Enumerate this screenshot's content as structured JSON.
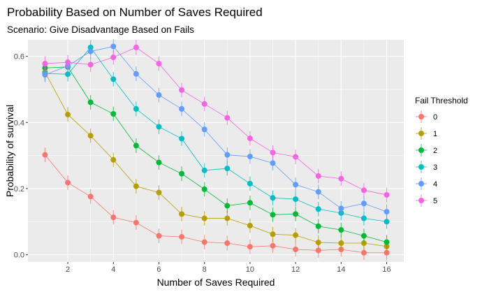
{
  "chart_data": {
    "type": "line",
    "title": "Probability Based on Number of Saves Required",
    "subtitle": "Scenario: Give Disadvantage Based on Fails",
    "xlabel": "Number of Saves Required",
    "ylabel": "Probability of survival",
    "xlim": [
      0.25,
      16.75
    ],
    "ylim": [
      -0.022,
      0.65
    ],
    "x_ticks": [
      2,
      4,
      6,
      8,
      10,
      12,
      14,
      16
    ],
    "x_tick_labels": [
      "2",
      "4",
      "6",
      "8",
      "10",
      "12",
      "14",
      "16"
    ],
    "y_ticks": [
      0.0,
      0.2,
      0.4,
      0.6
    ],
    "y_tick_labels": [
      "0.0",
      "0.2",
      "0.4",
      "0.6"
    ],
    "grid": true,
    "legend": {
      "title": "Fail Threshold",
      "position": "right"
    },
    "x": [
      1,
      2,
      3,
      4,
      5,
      6,
      7,
      8,
      9,
      10,
      11,
      12,
      13,
      14,
      15,
      16
    ],
    "error_half_width": 0.022,
    "series": [
      {
        "name": "0",
        "color": "#F8766D",
        "values": [
          0.302,
          0.218,
          0.176,
          0.113,
          0.097,
          0.057,
          0.054,
          0.038,
          0.035,
          0.024,
          0.027,
          0.016,
          0.013,
          0.016,
          0.006,
          0.006
        ]
      },
      {
        "name": "1",
        "color": "#B79F00",
        "values": [
          0.552,
          0.424,
          0.36,
          0.287,
          0.207,
          0.188,
          0.123,
          0.11,
          0.11,
          0.088,
          0.062,
          0.059,
          0.037,
          0.035,
          0.035,
          0.025
        ]
      },
      {
        "name": "2",
        "color": "#00BA38",
        "values": [
          0.565,
          0.568,
          0.461,
          0.426,
          0.33,
          0.279,
          0.245,
          0.198,
          0.148,
          0.157,
          0.121,
          0.123,
          0.086,
          0.075,
          0.057,
          0.038
        ]
      },
      {
        "name": "3",
        "color": "#00BFC4",
        "values": [
          0.548,
          0.546,
          0.627,
          0.531,
          0.441,
          0.387,
          0.351,
          0.255,
          0.261,
          0.215,
          0.172,
          0.168,
          0.138,
          0.126,
          0.11,
          0.1
        ]
      },
      {
        "name": "4",
        "color": "#619CFF",
        "values": [
          0.544,
          0.571,
          0.615,
          0.63,
          0.547,
          0.483,
          0.441,
          0.379,
          0.302,
          0.297,
          0.277,
          0.212,
          0.19,
          0.14,
          0.155,
          0.13
        ]
      },
      {
        "name": "5",
        "color": "#F564E3",
        "values": [
          0.578,
          0.582,
          0.575,
          0.597,
          0.627,
          0.578,
          0.498,
          0.456,
          0.414,
          0.352,
          0.309,
          0.296,
          0.238,
          0.23,
          0.195,
          0.181
        ]
      }
    ]
  }
}
